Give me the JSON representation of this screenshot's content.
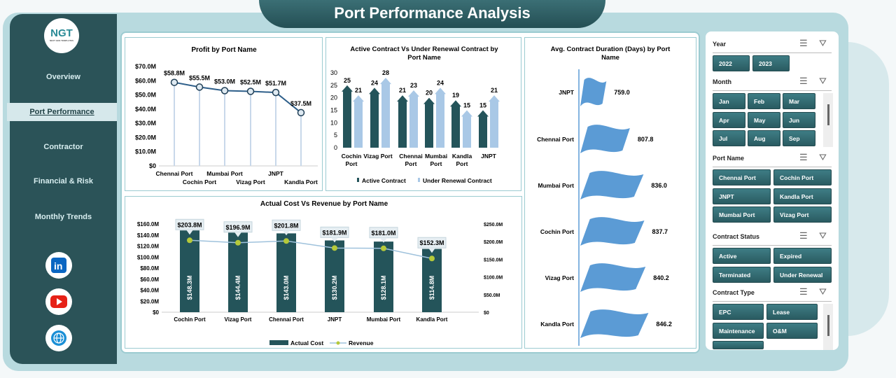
{
  "title": "Port Performance Analysis",
  "logo": {
    "text": "NGT",
    "tagline": "NEXT GEN TEMPLATES"
  },
  "nav": [
    {
      "label": "Overview"
    },
    {
      "label": "Port Performance",
      "active": true
    },
    {
      "label": "Contractor"
    },
    {
      "label": "Financial & Risk"
    },
    {
      "label": "Monthly Trends"
    }
  ],
  "social": [
    {
      "icon": "linkedin-icon",
      "color": "#0a66c2"
    },
    {
      "icon": "youtube-icon",
      "color": "#e62117"
    },
    {
      "icon": "globe-icon",
      "color": "#1a8fd6"
    }
  ],
  "colors": {
    "dark_teal": "#2b5358",
    "bar": "#24545a",
    "light_arrow": "#a9c8e6",
    "flag": "#5b9bd5",
    "revenue_dot": "#b5c93a"
  },
  "slicers": {
    "year": {
      "title": "Year",
      "items": [
        "2022",
        "2023"
      ]
    },
    "month": {
      "title": "Month",
      "items": [
        "Jan",
        "Feb",
        "Mar",
        "Apr",
        "May",
        "Jun",
        "Jul",
        "Aug",
        "Sep"
      ]
    },
    "port": {
      "title": "Port Name",
      "items": [
        "Chennai Port",
        "Cochin Port",
        "JNPT",
        "Kandla Port",
        "Mumbai Port",
        "Vizag Port"
      ]
    },
    "status": {
      "title": "Contract Status",
      "items": [
        "Active",
        "Expired",
        "Terminated",
        "Under Renewal"
      ]
    },
    "type": {
      "title": "Contract Type",
      "items": [
        "EPC",
        "Lease",
        "Maintenance",
        "O&M"
      ]
    }
  },
  "chart_data": [
    {
      "id": "profit",
      "type": "line",
      "title": "Profit by Port Name",
      "categories": [
        "Chennai Port",
        "Cochin Port",
        "Mumbai Port",
        "Vizag Port",
        "JNPT",
        "Kandla Port"
      ],
      "values": [
        58.8,
        55.5,
        53.0,
        52.5,
        51.7,
        37.5
      ],
      "labels": [
        "$58.8M",
        "$55.5M",
        "$53.0M",
        "$52.5M",
        "$51.7M",
        "$37.5M"
      ],
      "ylim": [
        0,
        70
      ],
      "yticks": [
        "$0",
        "$10.0M",
        "$20.0M",
        "$30.0M",
        "$40.0M",
        "$50.0M",
        "$60.0M",
        "$70.0M"
      ]
    },
    {
      "id": "contracts",
      "type": "bar",
      "title": [
        "Active Contract Vs Under Renewal Contract by",
        "Port Name"
      ],
      "categories": [
        [
          "Cochin",
          "Port"
        ],
        [
          "Vizag Port",
          ""
        ],
        [
          "Chennai",
          "Port"
        ],
        [
          "Mumbai",
          "Port"
        ],
        [
          "Kandla",
          "Port"
        ],
        [
          "JNPT",
          ""
        ]
      ],
      "series": [
        {
          "name": "Active Contract",
          "values": [
            25,
            24,
            21,
            20,
            19,
            15
          ]
        },
        {
          "name": "Under Renewal Contract",
          "values": [
            21,
            28,
            23,
            24,
            15,
            21
          ]
        }
      ],
      "ylim": [
        0,
        30
      ],
      "yticks": [
        "0",
        "5",
        "10",
        "15",
        "20",
        "25",
        "30"
      ]
    },
    {
      "id": "duration",
      "type": "bar",
      "orientation": "horizontal",
      "title": [
        "Avg. Contract Duration (Days) by Port",
        "Name"
      ],
      "categories": [
        "JNPT",
        "Chennai Port",
        "Mumbai Port",
        "Cochin Port",
        "Vizag Port",
        "Kandla Port"
      ],
      "values": [
        759.0,
        807.8,
        836.0,
        837.7,
        840.2,
        846.2
      ],
      "labels": [
        "759.0",
        "807.8",
        "836.0",
        "837.7",
        "840.2",
        "846.2"
      ]
    },
    {
      "id": "costrev",
      "type": "bar",
      "title": "Actual Cost Vs Revenue by Port Name",
      "categories": [
        "Cochin Port",
        "Vizag Port",
        "Chennai Port",
        "JNPT",
        "Mumbai Port",
        "Kandla Port"
      ],
      "series": [
        {
          "name": "Actual Cost",
          "type": "bar",
          "values": [
            148.3,
            144.4,
            143.0,
            130.2,
            128.1,
            114.8
          ],
          "labels": [
            "$148.3M",
            "$144.4M",
            "$143.0M",
            "$130.2M",
            "$128.1M",
            "$114.8M"
          ]
        },
        {
          "name": "Revenue",
          "type": "line",
          "axis": "right",
          "values": [
            203.8,
            196.9,
            201.8,
            181.9,
            181.0,
            152.3
          ],
          "labels": [
            "$203.8M",
            "$196.9M",
            "$201.8M",
            "$181.9M",
            "$181.0M",
            "$152.3M"
          ]
        }
      ],
      "ylim": [
        0,
        160
      ],
      "yticks": [
        "$0",
        "$20.0M",
        "$40.0M",
        "$60.0M",
        "$80.0M",
        "$100.0M",
        "$120.0M",
        "$140.0M",
        "$160.0M"
      ],
      "y2lim": [
        0,
        250
      ],
      "y2ticks": [
        "$0",
        "$50.0M",
        "$100.0M",
        "$150.0M",
        "$200.0M",
        "$250.0M"
      ]
    }
  ]
}
